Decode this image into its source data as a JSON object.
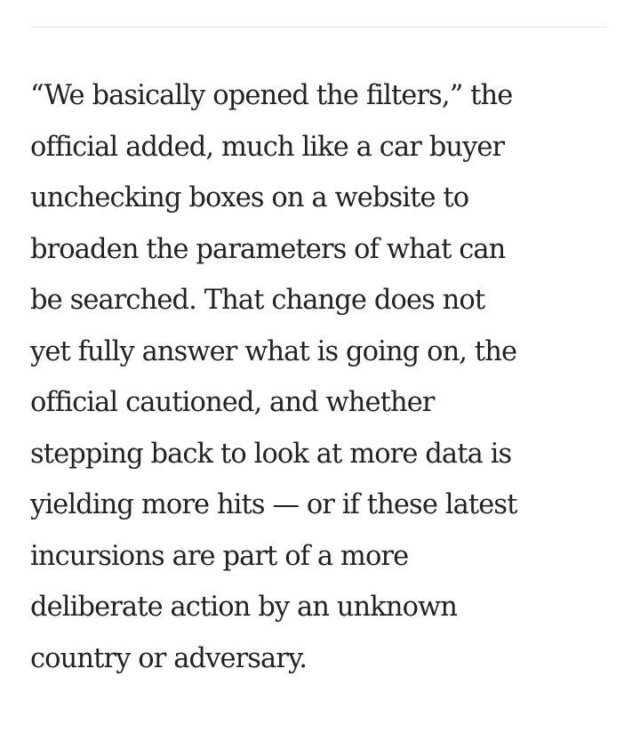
{
  "article": {
    "paragraph_lines": [
      "“We basically opened the filters,” the",
      "official added, much like a car buyer",
      "unchecking boxes on a website to",
      "broaden the parameters of what can",
      "be searched. That change does not",
      "yet fully answer what is going on, the",
      "official cautioned, and whether",
      "stepping back to look at more data is",
      "yielding more hits — or if these latest",
      "incursions are part of a more",
      "deliberate action by an unknown",
      "country or adversary."
    ]
  }
}
